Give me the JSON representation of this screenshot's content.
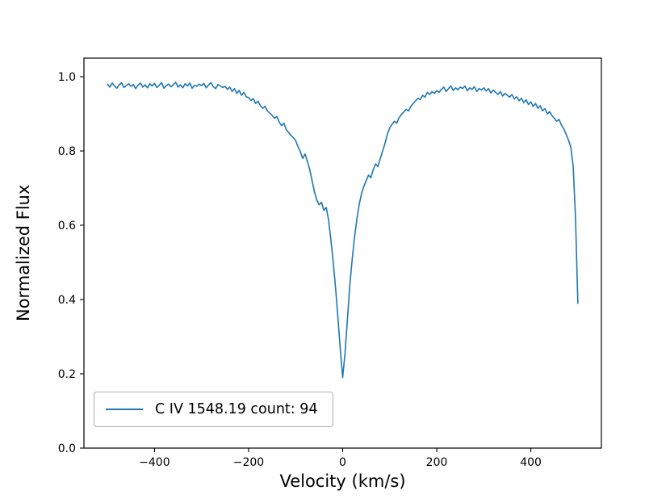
{
  "figure": {
    "background": "#ffffff",
    "axes_edge_color": "#000000"
  },
  "chart_data": {
    "type": "line",
    "title": "",
    "xlabel": "Velocity (km/s)",
    "ylabel": "Normalized Flux",
    "xlim": [
      -550,
      550
    ],
    "ylim": [
      0.0,
      1.05
    ],
    "grid": false,
    "xticks": {
      "values": [
        -400,
        -200,
        0,
        200,
        400
      ],
      "labels": [
        "−400",
        "−200",
        "0",
        "200",
        "400"
      ]
    },
    "yticks": {
      "values": [
        0.0,
        0.2,
        0.4,
        0.6,
        0.8,
        1.0
      ],
      "labels": [
        "0.0",
        "0.2",
        "0.4",
        "0.6",
        "0.8",
        "1.0"
      ]
    },
    "legend": {
      "position": "lower left",
      "entries": [
        {
          "label": "C IV 1548.19 count: 94",
          "color": "#1f77b4"
        }
      ]
    },
    "series": [
      {
        "name": "C IV 1548.19 count: 94",
        "color": "#1f77b4",
        "line_width": 1.6,
        "x_start": -500,
        "x_step": 5,
        "y": [
          0.98,
          0.972,
          0.983,
          0.975,
          0.969,
          0.978,
          0.984,
          0.971,
          0.976,
          0.981,
          0.974,
          0.979,
          0.968,
          0.977,
          0.983,
          0.972,
          0.978,
          0.97,
          0.981,
          0.975,
          0.982,
          0.971,
          0.977,
          0.984,
          0.969,
          0.976,
          0.98,
          0.973,
          0.979,
          0.985,
          0.972,
          0.978,
          0.97,
          0.981,
          0.975,
          0.983,
          0.969,
          0.977,
          0.974,
          0.98,
          0.976,
          0.982,
          0.97,
          0.978,
          0.984,
          0.973,
          0.968,
          0.979,
          0.975,
          0.971,
          0.974,
          0.966,
          0.972,
          0.96,
          0.968,
          0.955,
          0.963,
          0.95,
          0.958,
          0.946,
          0.944,
          0.936,
          0.941,
          0.928,
          0.934,
          0.922,
          0.915,
          0.92,
          0.908,
          0.902,
          0.896,
          0.888,
          0.893,
          0.878,
          0.868,
          0.875,
          0.858,
          0.85,
          0.842,
          0.836,
          0.828,
          0.812,
          0.798,
          0.78,
          0.792,
          0.772,
          0.75,
          0.72,
          0.69,
          0.668,
          0.655,
          0.662,
          0.64,
          0.648,
          0.615,
          0.56,
          0.5,
          0.43,
          0.35,
          0.265,
          0.19,
          0.255,
          0.345,
          0.435,
          0.505,
          0.565,
          0.615,
          0.655,
          0.685,
          0.705,
          0.72,
          0.735,
          0.728,
          0.75,
          0.765,
          0.758,
          0.78,
          0.8,
          0.82,
          0.845,
          0.862,
          0.872,
          0.88,
          0.875,
          0.89,
          0.898,
          0.905,
          0.912,
          0.908,
          0.92,
          0.928,
          0.935,
          0.942,
          0.938,
          0.95,
          0.945,
          0.958,
          0.952,
          0.96,
          0.955,
          0.962,
          0.958,
          0.966,
          0.972,
          0.96,
          0.968,
          0.975,
          0.963,
          0.97,
          0.965,
          0.972,
          0.968,
          0.975,
          0.962,
          0.97,
          0.966,
          0.973,
          0.96,
          0.968,
          0.964,
          0.97,
          0.962,
          0.968,
          0.956,
          0.964,
          0.958,
          0.952,
          0.96,
          0.948,
          0.955,
          0.95,
          0.945,
          0.952,
          0.94,
          0.946,
          0.935,
          0.942,
          0.93,
          0.938,
          0.925,
          0.932,
          0.92,
          0.928,
          0.915,
          0.922,
          0.908,
          0.914,
          0.9,
          0.906,
          0.895,
          0.888,
          0.88,
          0.885,
          0.87,
          0.86,
          0.845,
          0.83,
          0.81,
          0.76,
          0.62,
          0.39
        ]
      }
    ]
  }
}
